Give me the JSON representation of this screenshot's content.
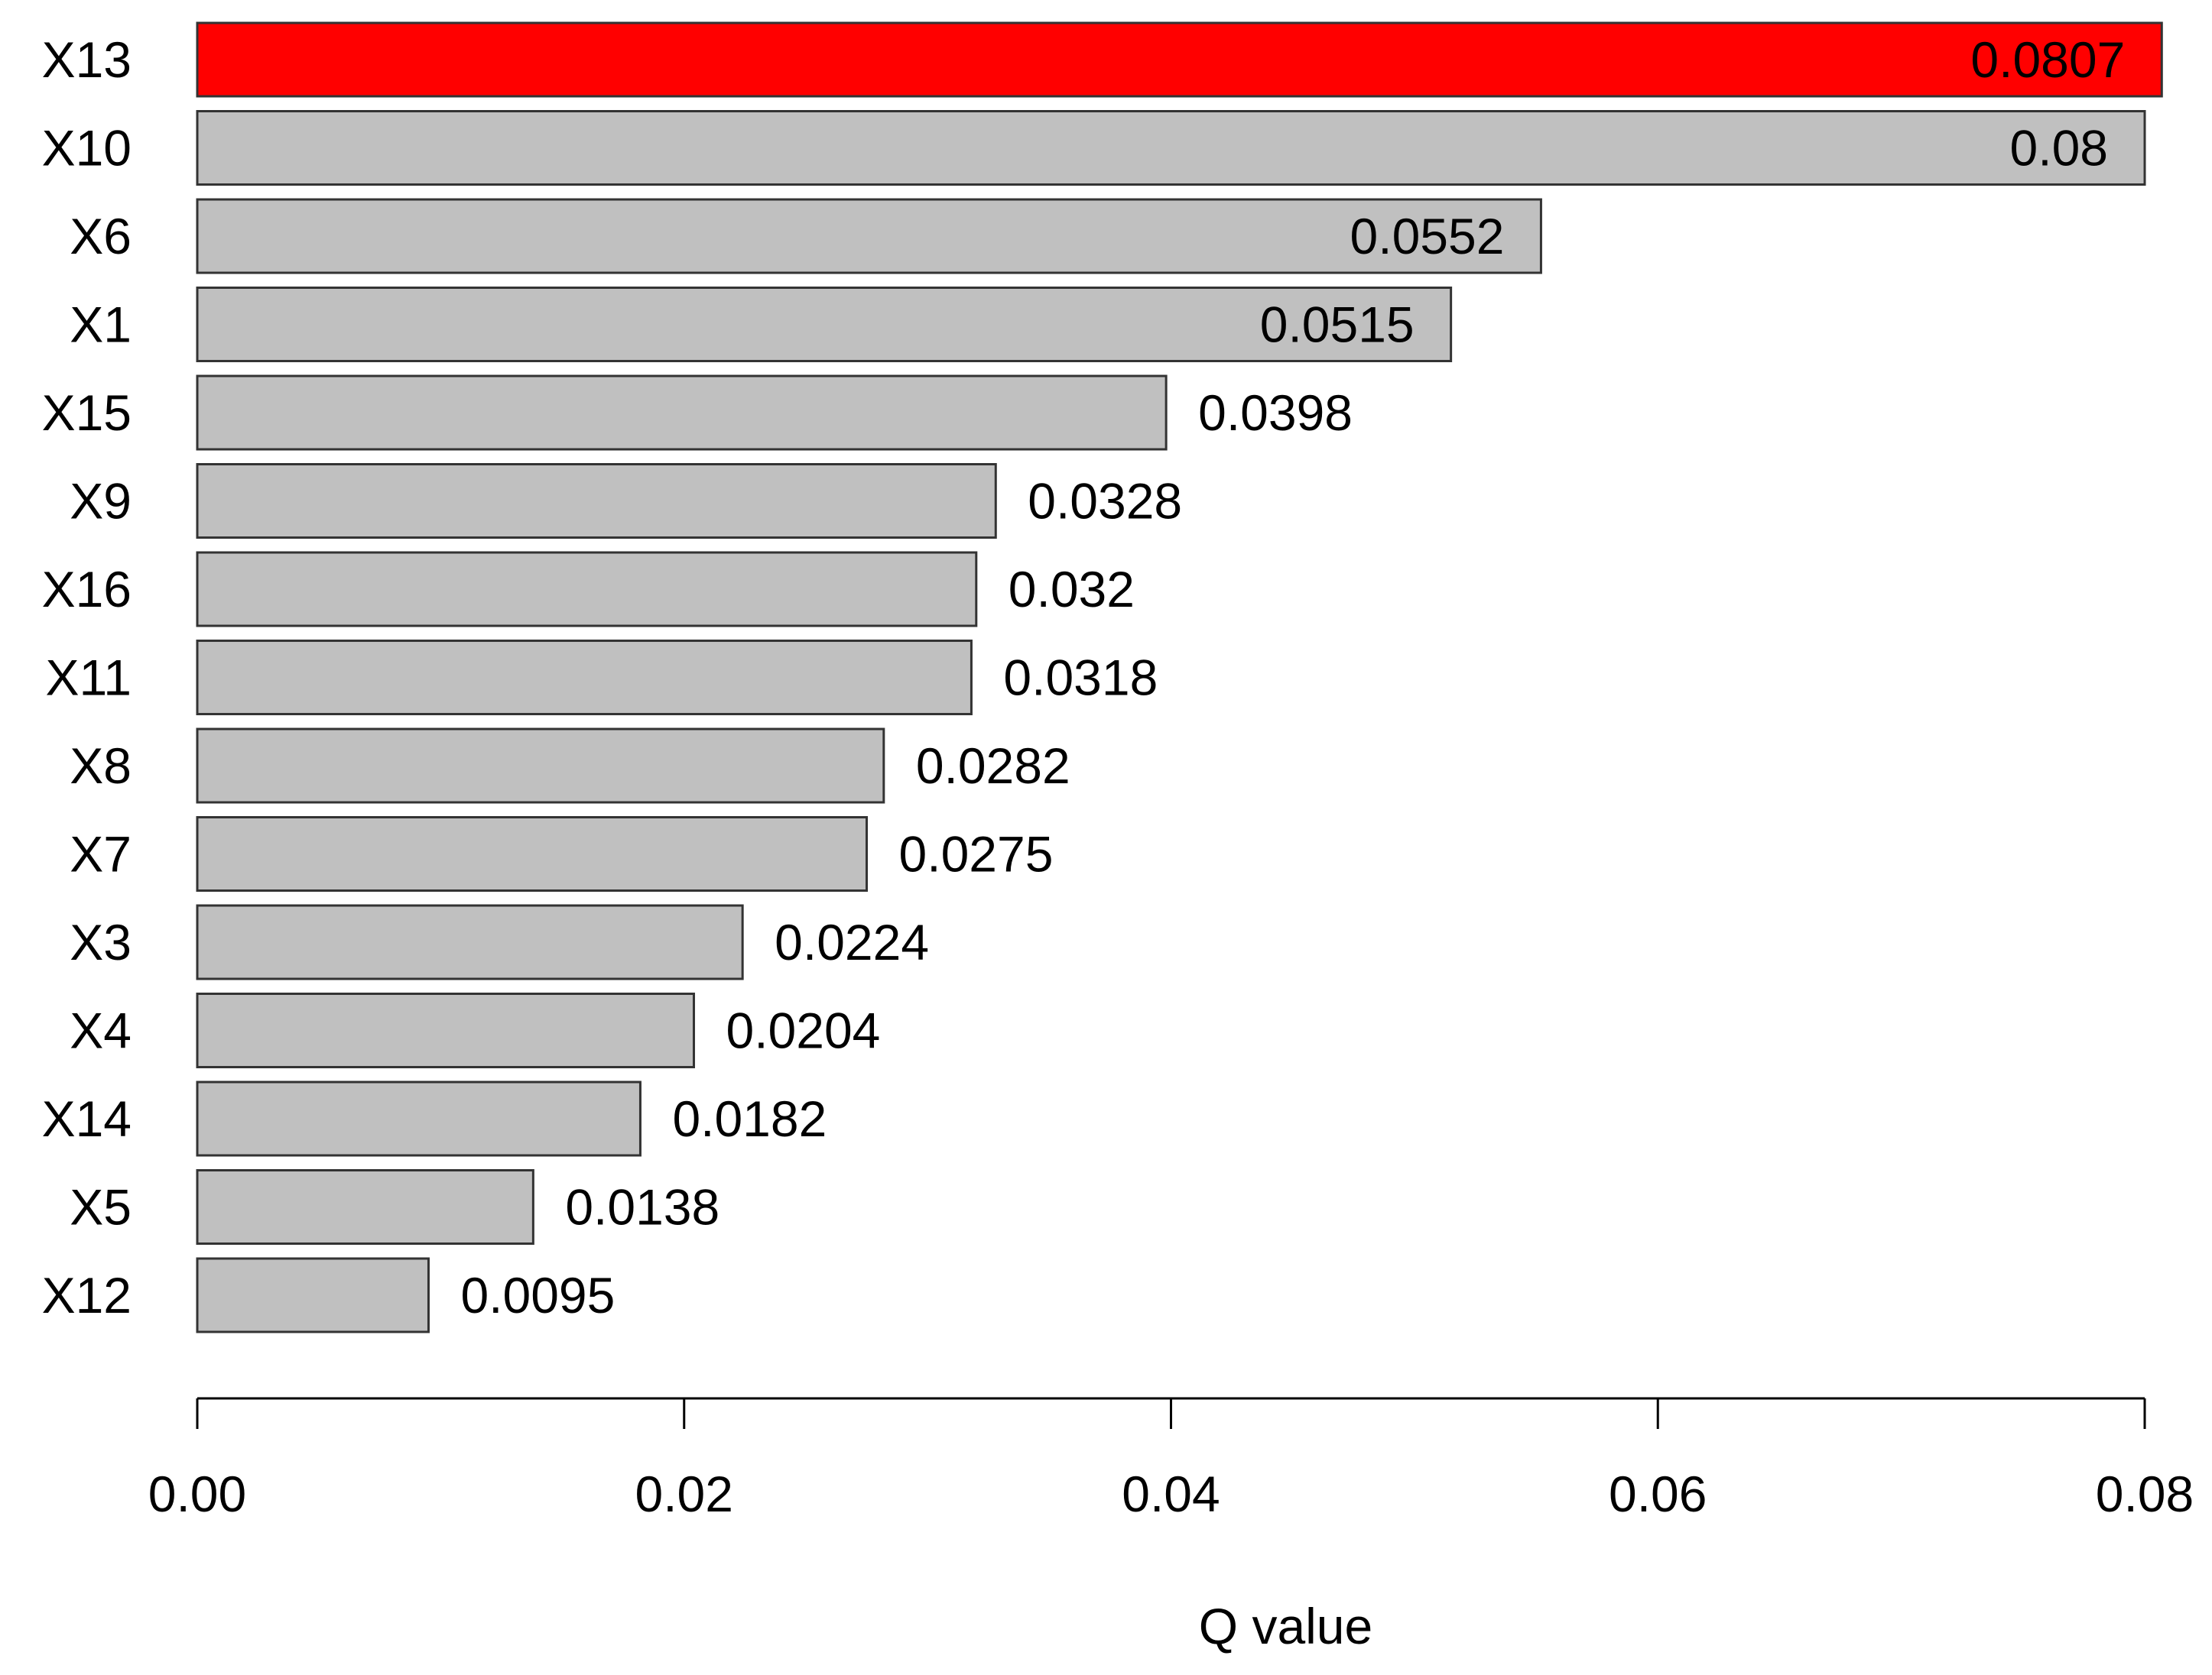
{
  "chart_data": {
    "type": "bar",
    "orientation": "horizontal",
    "categories": [
      "X13",
      "X10",
      "X6",
      "X1",
      "X15",
      "X9",
      "X16",
      "X11",
      "X8",
      "X7",
      "X3",
      "X4",
      "X14",
      "X5",
      "X12"
    ],
    "values": [
      0.0807,
      0.08,
      0.0552,
      0.0515,
      0.0398,
      0.0328,
      0.032,
      0.0318,
      0.0282,
      0.0275,
      0.0224,
      0.0204,
      0.0182,
      0.0138,
      0.0095
    ],
    "value_labels": [
      "0.0807",
      "0.08",
      "0.0552",
      "0.0515",
      "0.0398",
      "0.0328",
      "0.032",
      "0.0318",
      "0.0282",
      "0.0275",
      "0.0224",
      "0.0204",
      "0.0182",
      "0.0138",
      "0.0095"
    ],
    "xlabel": "Q value",
    "ylabel": "",
    "xlim": [
      0,
      0.08
    ],
    "xticks": [
      0.0,
      0.02,
      0.04,
      0.06,
      0.08
    ],
    "xtick_labels": [
      "0.00",
      "0.02",
      "0.04",
      "0.06",
      "0.08"
    ],
    "grid": false,
    "legend": "none",
    "colors": {
      "highlight": "#ff0000",
      "default": "#c0c0c0",
      "outline": "#333333"
    },
    "highlight_index": 0
  }
}
